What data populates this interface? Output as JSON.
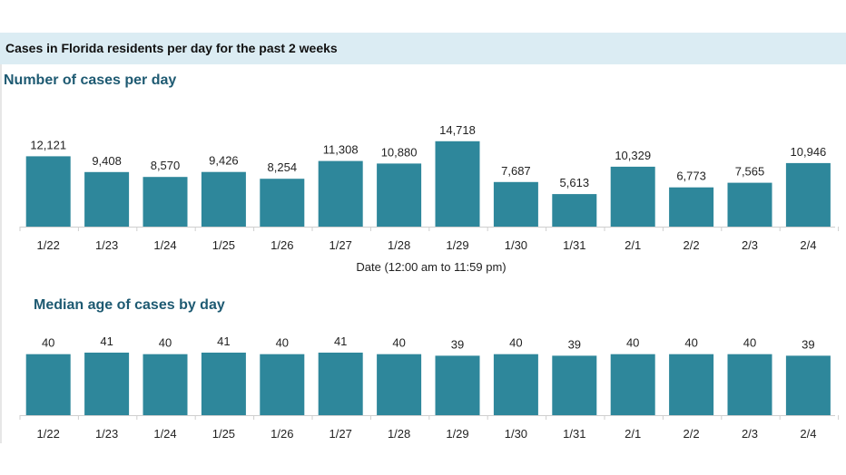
{
  "header": {
    "title": "Cases in Florida residents per day for the past 2 weeks"
  },
  "colors": {
    "bar": "#2e879b",
    "header_band": "#dbecf3",
    "section_title": "#1e5a72"
  },
  "chart_data": [
    {
      "type": "bar",
      "title": "Number of cases per day",
      "xlabel": "Date (12:00 am to 11:59 pm)",
      "ylabel": "",
      "categories": [
        "1/22",
        "1/23",
        "1/24",
        "1/25",
        "1/26",
        "1/27",
        "1/28",
        "1/29",
        "1/30",
        "1/31",
        "2/1",
        "2/2",
        "2/3",
        "2/4"
      ],
      "values": [
        12121,
        9408,
        8570,
        9426,
        8254,
        11308,
        10880,
        14718,
        7687,
        5613,
        10329,
        6773,
        7565,
        10946
      ],
      "value_labels": [
        "12,121",
        "9,408",
        "8,570",
        "9,426",
        "8,254",
        "11,308",
        "10,880",
        "14,718",
        "7,687",
        "5,613",
        "10,329",
        "6,773",
        "7,565",
        "10,946"
      ],
      "ylim": [
        0,
        15000
      ],
      "grid": false
    },
    {
      "type": "bar",
      "title": "Median age of cases by day",
      "xlabel": "",
      "ylabel": "",
      "categories": [
        "1/22",
        "1/23",
        "1/24",
        "1/25",
        "1/26",
        "1/27",
        "1/28",
        "1/29",
        "1/30",
        "1/31",
        "2/1",
        "2/2",
        "2/3",
        "2/4"
      ],
      "values": [
        40,
        41,
        40,
        41,
        40,
        41,
        40,
        39,
        40,
        39,
        40,
        40,
        40,
        39
      ],
      "value_labels": [
        "40",
        "41",
        "40",
        "41",
        "40",
        "41",
        "40",
        "39",
        "40",
        "39",
        "40",
        "40",
        "40",
        "39"
      ],
      "ylim": [
        0,
        41
      ],
      "grid": false
    }
  ]
}
